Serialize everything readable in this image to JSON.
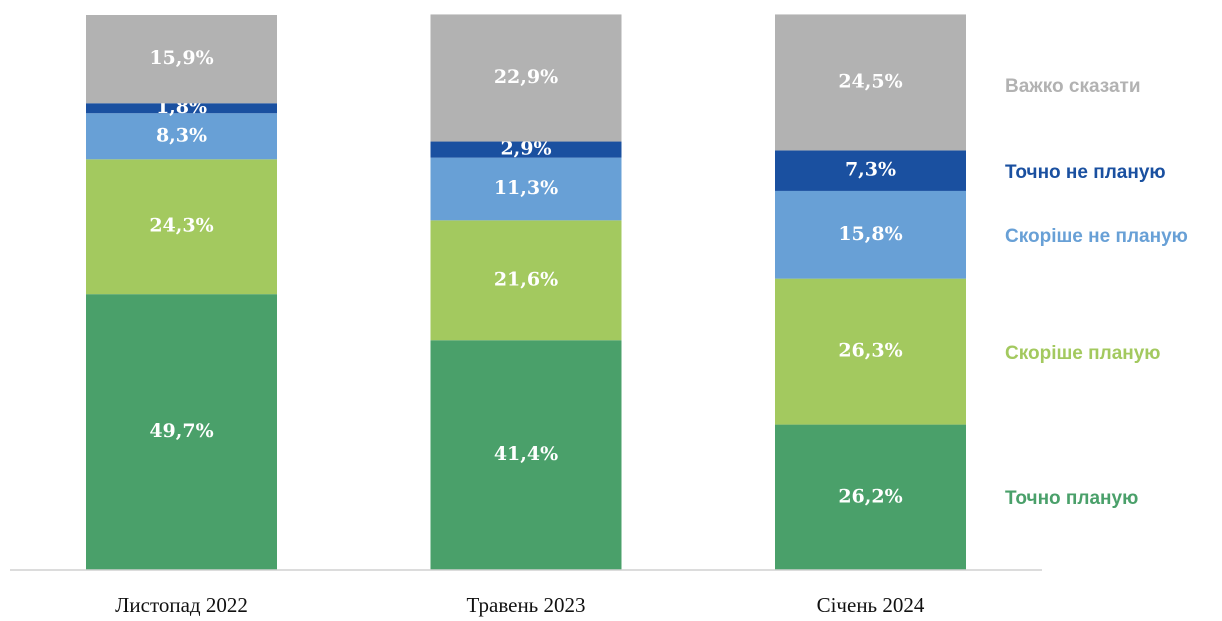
{
  "chart_data": {
    "type": "stacked_bar",
    "categories": [
      "Листопад 2022",
      "Травень 2023",
      "Січень 2024"
    ],
    "ylim": [
      0,
      100
    ],
    "series": [
      {
        "name": "Точно планую",
        "color": "#4aa06a",
        "values": [
          49.7,
          41.4,
          26.2
        ],
        "value_labels": [
          "49,7%",
          "41,4%",
          "26,2%"
        ]
      },
      {
        "name": "Скоріше планую",
        "color": "#a3c95f",
        "values": [
          24.3,
          21.6,
          26.3
        ],
        "value_labels": [
          "24,3%",
          "21,6%",
          "26,3%"
        ]
      },
      {
        "name": "Скоріше не планую",
        "color": "#68a0d6",
        "values": [
          8.3,
          11.3,
          15.8
        ],
        "value_labels": [
          "8,3%",
          "11,3%",
          "15,8%"
        ]
      },
      {
        "name": "Точно не планую",
        "color": "#1a50a0",
        "values": [
          1.8,
          2.9,
          7.3
        ],
        "value_labels": [
          "1,8%",
          "2,9%",
          "7,3%"
        ]
      },
      {
        "name": "Важко сказати",
        "color": "#b2b2b2",
        "values": [
          15.9,
          22.9,
          24.5
        ],
        "value_labels": [
          "15,9%",
          "22,9%",
          "24,5%"
        ]
      }
    ]
  }
}
